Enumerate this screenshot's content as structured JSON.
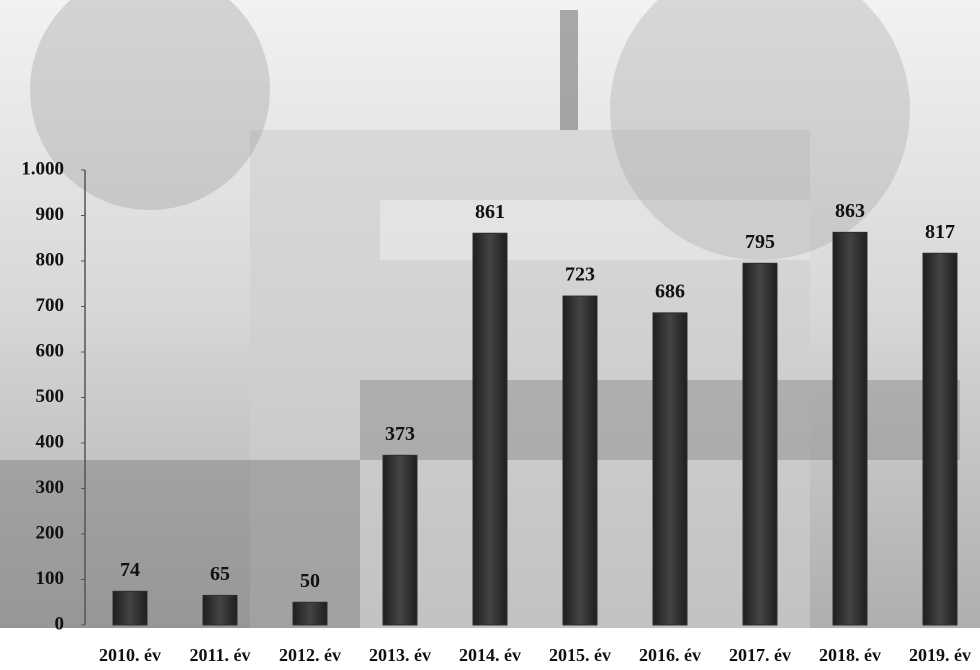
{
  "chart_data": {
    "type": "bar",
    "categories": [
      "2010. év",
      "2011. év",
      "2012. év",
      "2013. év",
      "2014. év",
      "2015. év",
      "2016. év",
      "2017. év",
      "2018. év",
      "2019. év"
    ],
    "values": [
      74,
      65,
      50,
      373,
      861,
      723,
      686,
      795,
      863,
      817
    ],
    "color": "#2e2e2e",
    "ylim": [
      0,
      1000
    ],
    "yticks": [
      0,
      100,
      200,
      300,
      400,
      500,
      600,
      700,
      800,
      900,
      {
        "value": 1000,
        "label": "1.000"
      }
    ],
    "grid": false
  }
}
